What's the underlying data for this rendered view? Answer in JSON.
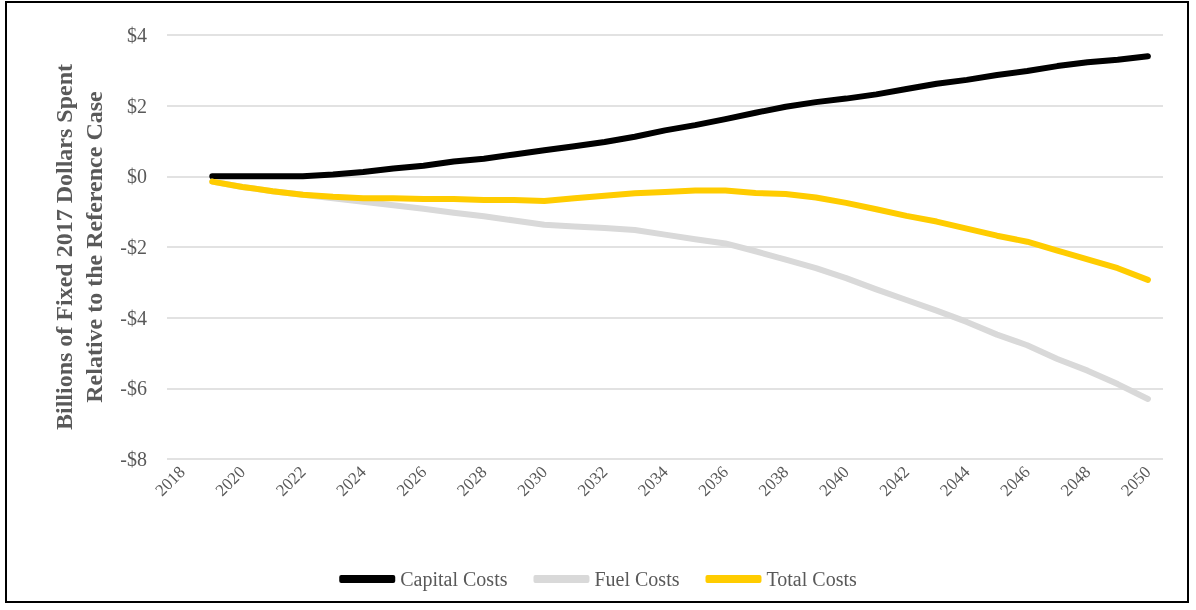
{
  "chart_data": {
    "type": "line",
    "ylabel": "Billions of Fixed 2017 Dollars Spent Relative to the Reference Case",
    "categories": [
      "2018",
      null,
      "2020",
      null,
      "2022",
      null,
      "2024",
      null,
      "2026",
      null,
      "2028",
      null,
      "2030",
      null,
      "2032",
      null,
      "2034",
      null,
      "2036",
      null,
      "2038",
      null,
      "2040",
      null,
      "2042",
      null,
      "2044",
      null,
      "2046",
      null,
      "2048",
      null,
      "2050"
    ],
    "series": [
      {
        "name": "Capital Costs",
        "color": "#000000",
        "values": [
          null,
          0.0,
          0.0,
          0.0,
          0.0,
          0.05,
          0.12,
          0.22,
          0.3,
          0.42,
          0.5,
          0.62,
          0.74,
          0.85,
          0.97,
          1.12,
          1.3,
          1.45,
          1.62,
          1.8,
          1.97,
          2.1,
          2.2,
          2.32,
          2.47,
          2.62,
          2.73,
          2.87,
          2.98,
          3.12,
          3.23,
          3.3,
          3.4
        ]
      },
      {
        "name": "Fuel Costs",
        "color": "#d9d9d9",
        "values": [
          null,
          -0.15,
          -0.3,
          -0.42,
          -0.52,
          -0.62,
          -0.72,
          -0.82,
          -0.92,
          -1.03,
          -1.13,
          -1.25,
          -1.37,
          -1.42,
          -1.46,
          -1.52,
          -1.65,
          -1.78,
          -1.9,
          -2.12,
          -2.36,
          -2.6,
          -2.88,
          -3.2,
          -3.5,
          -3.8,
          -4.12,
          -4.48,
          -4.78,
          -5.17,
          -5.5,
          -5.88,
          -6.3
        ]
      },
      {
        "name": "Total Costs",
        "color": "#ffcc00",
        "values": [
          null,
          -0.15,
          -0.3,
          -0.42,
          -0.52,
          -0.58,
          -0.62,
          -0.62,
          -0.64,
          -0.64,
          -0.67,
          -0.67,
          -0.7,
          -0.62,
          -0.55,
          -0.48,
          -0.44,
          -0.4,
          -0.4,
          -0.47,
          -0.5,
          -0.6,
          -0.75,
          -0.93,
          -1.12,
          -1.28,
          -1.48,
          -1.68,
          -1.85,
          -2.1,
          -2.35,
          -2.6,
          -2.93
        ]
      }
    ],
    "ylim": [
      -8,
      4
    ],
    "yticks": [
      {
        "value": -8,
        "label": "-$8"
      },
      {
        "value": -6,
        "label": "-$6"
      },
      {
        "value": -4,
        "label": "-$4"
      },
      {
        "value": -2,
        "label": "-$2"
      },
      {
        "value": 0,
        "label": "$0"
      },
      {
        "value": 2,
        "label": "$2"
      },
      {
        "value": 4,
        "label": "$4"
      }
    ],
    "grid": "y",
    "legend": "bottom",
    "marker": "none",
    "line_style": "solid"
  }
}
